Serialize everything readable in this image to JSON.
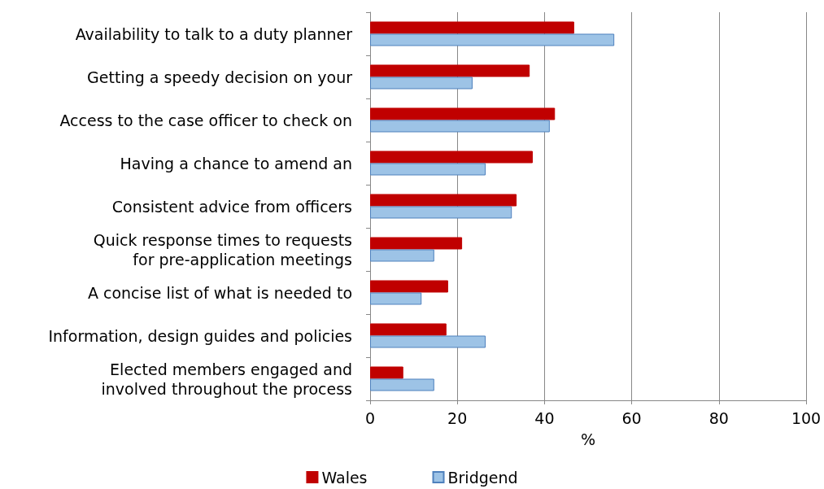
{
  "chart_data": {
    "type": "bar",
    "orientation": "horizontal",
    "xlabel": "%",
    "categories": [
      "Availability to talk to a duty planner",
      "Getting a speedy decision on your",
      "Access to the case officer to check on",
      "Having a chance to amend an",
      "Consistent advice from officers",
      "Quick response times to requests\nfor pre-application meetings",
      "A concise list of what is needed to",
      "Information, design guides and policies",
      "Elected members engaged and\ninvolved throughout the process"
    ],
    "series": [
      {
        "name": "Wales",
        "color": "#c00000",
        "values": [
          46.8,
          36.6,
          42.4,
          37.3,
          33.6,
          21.1,
          17.9,
          17.5,
          7.6
        ]
      },
      {
        "name": "Bridgend",
        "color": "#9dc3e6",
        "values": [
          56.0,
          23.5,
          41.2,
          26.5,
          32.5,
          14.7,
          11.8,
          26.5,
          14.7
        ]
      }
    ],
    "xlim": [
      0,
      100
    ],
    "xticks": [
      0,
      20,
      40,
      60,
      80,
      100
    ],
    "grid": "x",
    "legend": "bottom"
  }
}
